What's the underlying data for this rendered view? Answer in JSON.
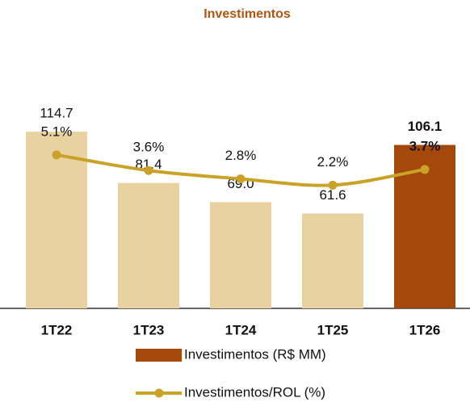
{
  "chart_data": {
    "type": "bar",
    "title": "Investimentos",
    "categories": [
      "1T22",
      "1T23",
      "1T24",
      "1T25",
      "1T26"
    ],
    "series": [
      {
        "name": "Investimentos (R$ MM)",
        "type": "bar",
        "color": "#A5480C",
        "colors": [
          "#E8D3A0",
          "#E8D3A0",
          "#E8D3A0",
          "#E8D3A0",
          "#A5480C"
        ],
        "values": [
          114.7,
          81.4,
          69.0,
          61.6,
          106.1
        ],
        "value_labels": [
          "114.7",
          "81.4",
          "69.0",
          "61.6",
          "106.1"
        ]
      },
      {
        "name": "Investimentos/ROL (%)",
        "type": "line",
        "axis": "y2",
        "color": "#C9A227",
        "values": [
          5.1,
          3.6,
          2.8,
          2.2,
          3.7
        ],
        "value_labels": [
          "5.1%",
          "3.6%",
          "2.8%",
          "2.2%",
          "3.7%"
        ]
      }
    ],
    "ylim": [
      0,
      120
    ],
    "y2lim": [
      -9.6,
      8.1
    ]
  }
}
